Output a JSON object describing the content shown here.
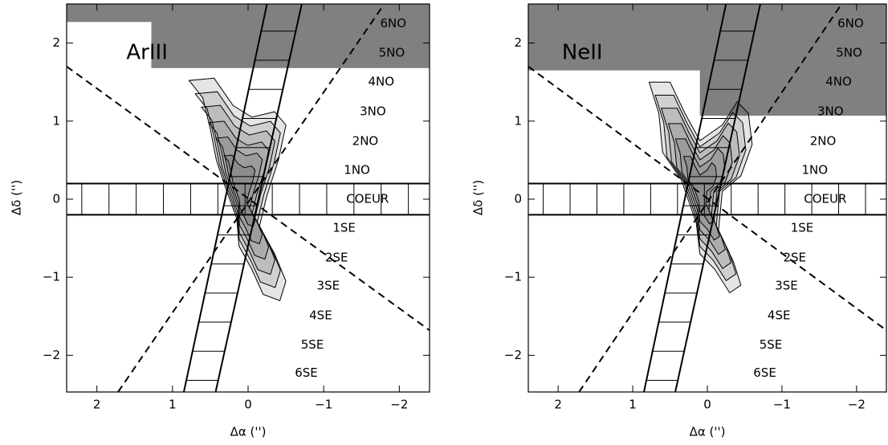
{
  "chart_data": [
    {
      "type": "image",
      "title": "ArIII",
      "xlabel": "Δα ('')",
      "ylabel": "Δδ ('')",
      "xlim": [
        2.4,
        -2.4
      ],
      "ylim": [
        -2.47,
        2.5
      ],
      "xticks": [
        2,
        1,
        0,
        {
          "value": -1,
          "label": "−1"
        },
        {
          "value": -2,
          "label": "−2"
        }
      ],
      "yticks": [
        {
          "value": -2,
          "label": "−2"
        },
        {
          "value": -1,
          "label": "−1"
        },
        0,
        1,
        2
      ],
      "annotations": [
        "6NO",
        "5NO",
        "4NO",
        "3NO",
        "2NO",
        "1NO",
        "COEUR",
        "1SE",
        "2SE",
        "3SE",
        "4SE",
        "5SE",
        "6SE"
      ]
    },
    {
      "type": "image",
      "title": "NeII",
      "xlabel": "Δα ('')",
      "ylabel": "Δδ ('')",
      "xlim": [
        2.4,
        -2.4
      ],
      "ylim": [
        -2.47,
        2.5
      ],
      "xticks": [
        2,
        1,
        0,
        {
          "value": -1,
          "label": "−1"
        },
        {
          "value": -2,
          "label": "−2"
        }
      ],
      "yticks": [
        {
          "value": -2,
          "label": "−2"
        },
        {
          "value": -1,
          "label": "−1"
        },
        0,
        1,
        2
      ],
      "annotations": [
        "6NO",
        "5NO",
        "4NO",
        "3NO",
        "2NO",
        "1NO",
        "COEUR",
        "1SE",
        "2SE",
        "3SE",
        "4SE",
        "5SE",
        "6SE"
      ]
    }
  ]
}
